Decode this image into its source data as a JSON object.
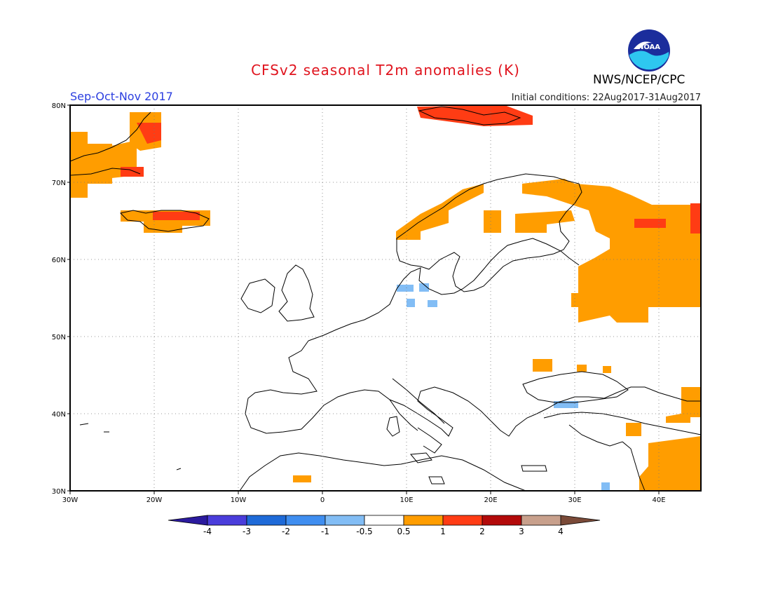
{
  "header": {
    "title": "CFSv2 seasonal T2m anomalies (K)",
    "season": "Sep-Oct-Nov 2017",
    "initial_conditions": "Initial conditions: 22Aug2017-31Aug2017",
    "agency": "NWS/NCEP/CPC",
    "logo_text": "NOAA"
  },
  "map": {
    "lon_range": [
      -30,
      45
    ],
    "lat_range": [
      30,
      80
    ],
    "lon_ticks": [
      "30W",
      "20W",
      "10W",
      "0",
      "10E",
      "20E",
      "30E",
      "40E"
    ],
    "lat_ticks": [
      "80N",
      "70N",
      "60N",
      "50N",
      "40N",
      "30N"
    ],
    "grid": "dotted"
  },
  "colorbar": {
    "labels": [
      "-4",
      "-3",
      "-2",
      "-1",
      "-0.5",
      "0.5",
      "1",
      "2",
      "3",
      "4"
    ],
    "colors": [
      "#2b1a9e",
      "#4a3ddb",
      "#1e6ad8",
      "#3f8ef0",
      "#82bdf5",
      "#ffffff",
      "#ff9d00",
      "#ff3c14",
      "#b30a0a",
      "#c8a08c",
      "#7a4a38"
    ]
  }
}
